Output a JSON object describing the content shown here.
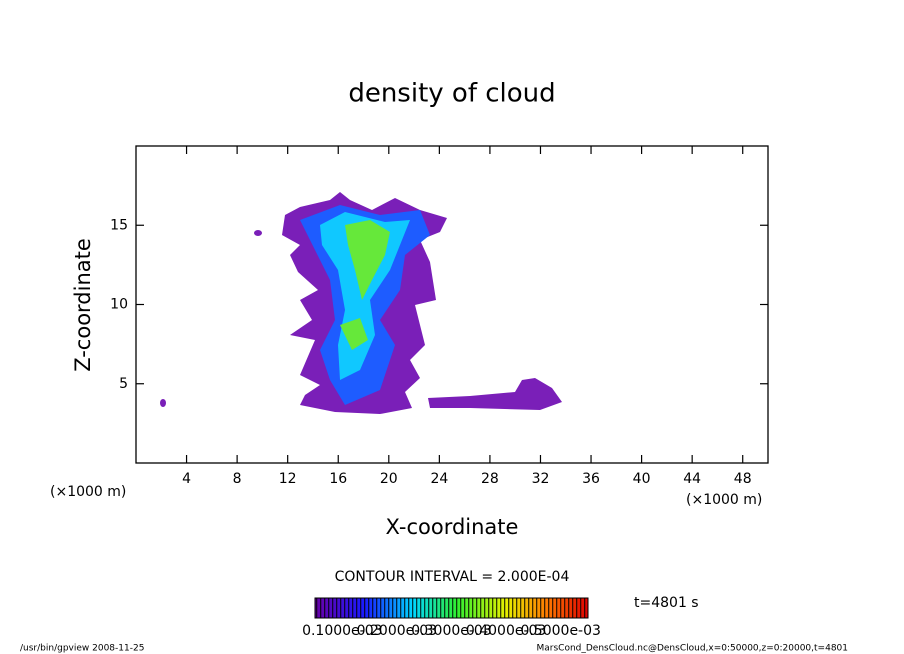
{
  "chart_data": {
    "type": "contour",
    "title": "density of cloud",
    "x_label": "X-coordinate",
    "y_label": "Z-coordinate",
    "x_unit": "(×1000 m)",
    "y_unit": "(×1000 m)",
    "xlim": [
      0,
      50
    ],
    "ylim": [
      0,
      20
    ],
    "xticks": [
      4,
      8,
      12,
      16,
      20,
      24,
      28,
      32,
      36,
      40,
      44,
      48
    ],
    "yticks": [
      5,
      10,
      15
    ],
    "contour_interval": "CONTOUR INTERVAL = 2.000E-04",
    "time": "t=4801 s",
    "colorbar_lim": [
      5e-05,
      0.00055
    ],
    "colorbar_ticks": [
      {
        "value": 0.0001,
        "label": "0.1000e-03"
      },
      {
        "value": 0.0002,
        "label": "0.2000e-03"
      },
      {
        "value": 0.0003,
        "label": "0.3000e-03"
      },
      {
        "value": 0.0004,
        "label": "0.4000e-03"
      },
      {
        "value": 0.0005,
        "label": "0.5000e-03"
      }
    ],
    "footer_left": "/usr/bin/gpview  2008-11-25",
    "footer_right": "MarsCond_DensCloud.nc@DensCloud,x=0:50000,z=0:20000,t=4801"
  }
}
